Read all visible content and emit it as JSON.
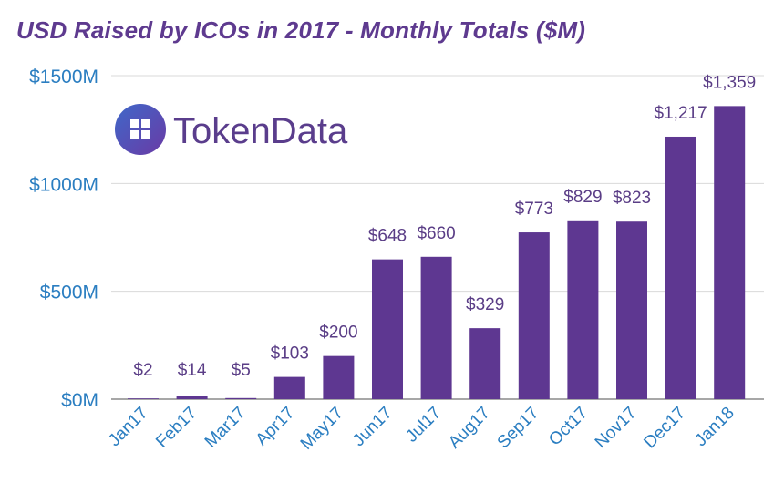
{
  "brand": {
    "logo_text": "TokenData",
    "logo_icon": "grid-squares-icon",
    "colors": {
      "logo_gradient_start": "#3f68c9",
      "logo_gradient_end": "#6a3aa5"
    }
  },
  "colors": {
    "bar": "#5e3791",
    "title": "#5e3a8f",
    "axis_text": "#2b7ec1",
    "data_label": "#5a3d86",
    "grid": "#d9d9d9"
  },
  "chart_data": {
    "type": "bar",
    "title": "USD Raised by ICOs in 2017 - Monthly Totals ($M)",
    "xlabel": "",
    "ylabel": "",
    "categories": [
      "Jan17",
      "Feb17",
      "Mar17",
      "Apr17",
      "May17",
      "Jun17",
      "Jul17",
      "Aug17",
      "Sep17",
      "Oct17",
      "Nov17",
      "Dec17",
      "Jan18"
    ],
    "values": [
      2,
      14,
      5,
      103,
      200,
      648,
      660,
      329,
      773,
      829,
      823,
      1217,
      1359
    ],
    "data_labels": [
      "$2",
      "$14",
      "$5",
      "$103",
      "$200",
      "$648",
      "$660",
      "$329",
      "$773",
      "$829",
      "$823",
      "$1,217",
      "$1,359"
    ],
    "yticks": [
      0,
      500,
      1000,
      1500
    ],
    "ytick_labels": [
      "$0M",
      "$500M",
      "$1000M",
      "$1500M"
    ],
    "ylim": [
      0,
      1500
    ],
    "grid": true
  }
}
